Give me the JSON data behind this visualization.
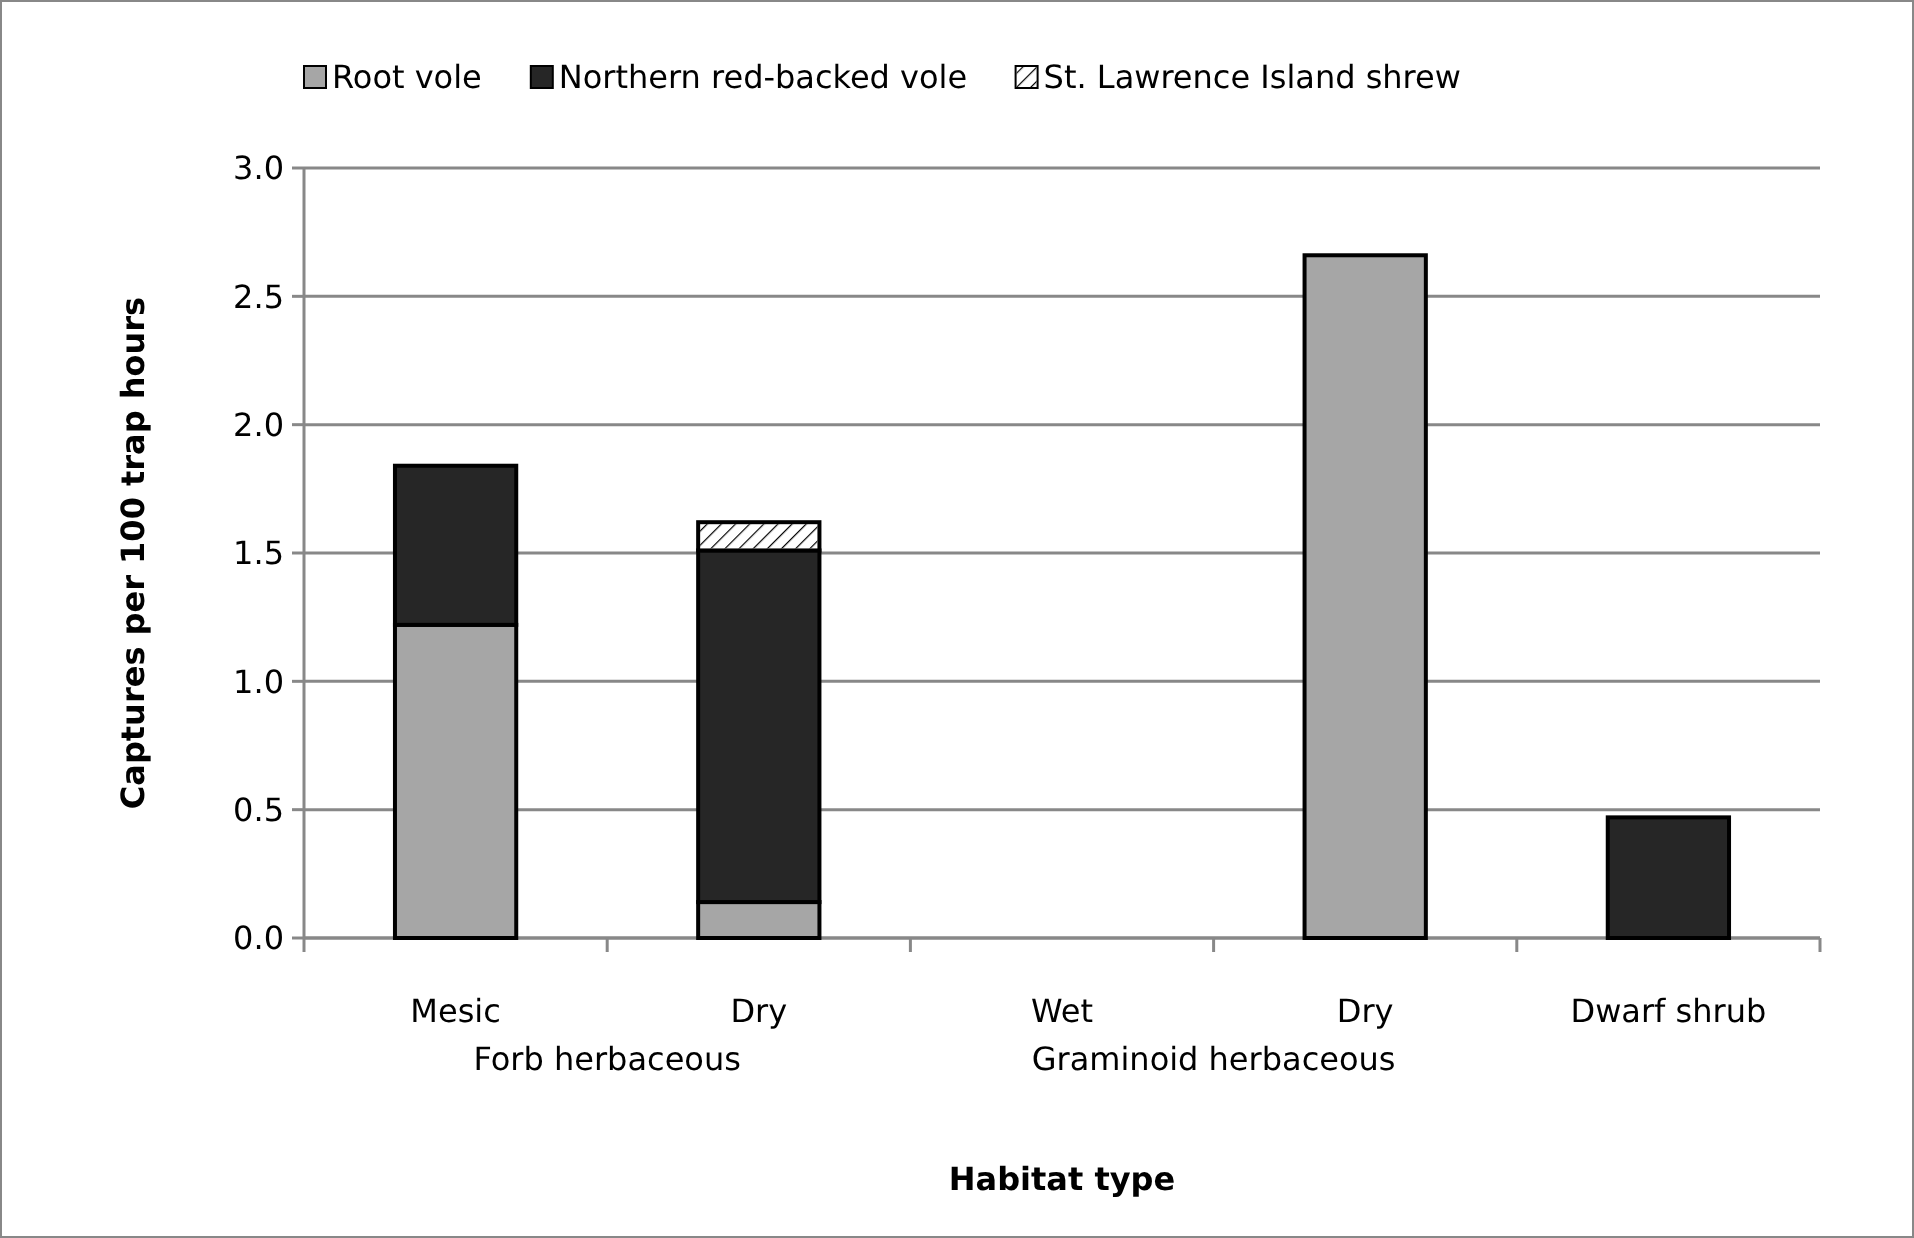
{
  "chart_data": {
    "type": "bar",
    "stacked": true,
    "xlabel": "Habitat type",
    "ylabel": "Captures per 100 trap hours",
    "categories": [
      "Mesic",
      "Dry",
      "Wet",
      "Dry",
      "Dwarf shrub"
    ],
    "series": [
      {
        "name": "Root vole",
        "color": "#a6a6a6",
        "values": [
          1.22,
          0.14,
          null,
          2.66,
          null
        ]
      },
      {
        "name": "Northern red-backed vole",
        "color": "#262626",
        "values": [
          0.62,
          1.37,
          null,
          null,
          0.47
        ]
      },
      {
        "name": "St. Lawrence Island shrew",
        "color": "#ffffff",
        "values": [
          null,
          0.11,
          null,
          null,
          null
        ]
      }
    ],
    "annotations": [
      "Forb herbaceous",
      "Graminoid herbaceous"
    ],
    "ylim": [
      0,
      3
    ],
    "yticks": [
      {
        "value": 0,
        "label": "0.0"
      },
      {
        "value": 0.5,
        "label": "0.5"
      },
      {
        "value": 1,
        "label": "1.0"
      },
      {
        "value": 1.5,
        "label": "1.5"
      },
      {
        "value": 2,
        "label": "2.0"
      },
      {
        "value": 2.5,
        "label": "2.5"
      },
      {
        "value": 3,
        "label": "3.0"
      }
    ],
    "grid": "y",
    "legend": "top"
  }
}
